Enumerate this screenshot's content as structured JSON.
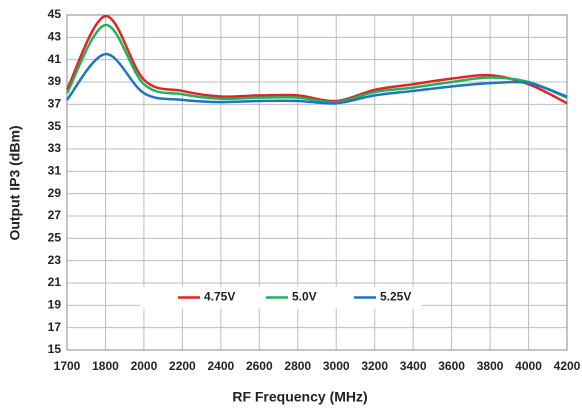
{
  "chart_data": {
    "type": "line",
    "x_label": "RF Frequency (MHz)",
    "y_label": "Output IP3 (dBm)",
    "categories": [
      "1700",
      "1800",
      "2000",
      "2200",
      "2400",
      "2600",
      "2800",
      "3000",
      "3200",
      "3400",
      "3600",
      "3800",
      "4000",
      "4200"
    ],
    "series": [
      {
        "name": "4.75V",
        "color": "#e02424",
        "values": [
          38.3,
          44.9,
          39.2,
          38.2,
          37.7,
          37.8,
          37.8,
          37.3,
          38.3,
          38.8,
          39.3,
          39.6,
          38.8,
          37.1
        ]
      },
      {
        "name": "5.0V",
        "color": "#21b35a",
        "values": [
          38.0,
          44.1,
          38.8,
          37.9,
          37.5,
          37.6,
          37.6,
          37.2,
          38.1,
          38.5,
          39.0,
          39.4,
          39.0,
          37.6
        ]
      },
      {
        "name": "5.25V",
        "color": "#1f74c4",
        "values": [
          37.4,
          41.5,
          38.0,
          37.4,
          37.2,
          37.3,
          37.3,
          37.1,
          37.8,
          38.2,
          38.6,
          38.9,
          38.9,
          37.7
        ]
      }
    ],
    "ylim": [
      15,
      45
    ],
    "yticks": [
      15,
      17,
      19,
      21,
      23,
      25,
      27,
      29,
      31,
      33,
      35,
      37,
      39,
      41,
      43,
      45
    ],
    "grid": true,
    "legend": "bottom"
  }
}
